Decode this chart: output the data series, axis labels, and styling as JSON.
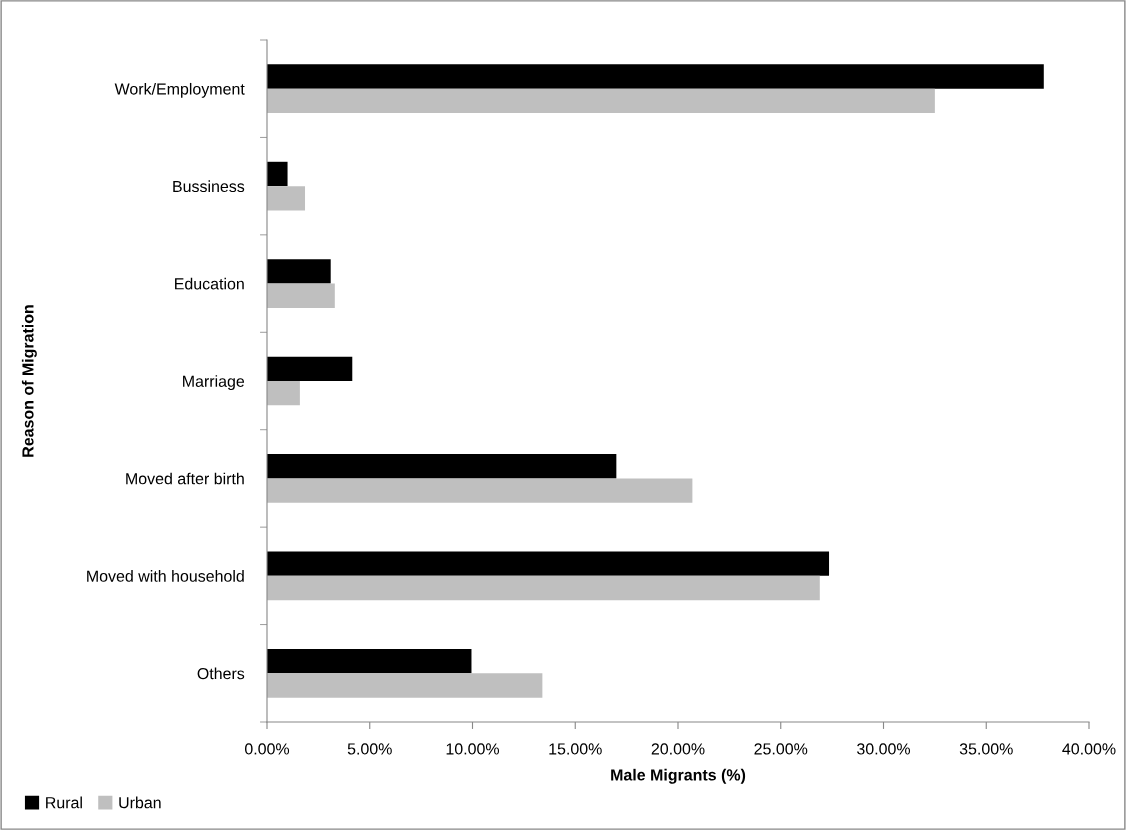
{
  "chart_data": {
    "type": "bar",
    "orientation": "horizontal",
    "xlabel": "Male Migrants (%)",
    "ylabel": "Reason of Migration",
    "categories": [
      "Work/Employment",
      "Bussiness",
      "Education",
      "Marriage",
      "Moved after birth",
      "Moved with household",
      "Others"
    ],
    "series": [
      {
        "name": "Rural",
        "color": "#000000",
        "values": [
          37.8,
          1.0,
          3.1,
          4.15,
          17.0,
          27.35,
          9.95
        ]
      },
      {
        "name": "Urban",
        "color": "#bfbfbf",
        "values": [
          32.5,
          1.85,
          3.3,
          1.6,
          20.7,
          26.9,
          13.4
        ]
      }
    ],
    "xlim": [
      0,
      40
    ],
    "xticks": [
      {
        "value": 0,
        "label": "0.00%"
      },
      {
        "value": 5,
        "label": "5.00%"
      },
      {
        "value": 10,
        "label": "10.00%"
      },
      {
        "value": 15,
        "label": "15.00%"
      },
      {
        "value": 20,
        "label": "20.00%"
      },
      {
        "value": 25,
        "label": "25.00%"
      },
      {
        "value": 30,
        "label": "30.00%"
      },
      {
        "value": 35,
        "label": "35.00%"
      },
      {
        "value": 40,
        "label": "40.00%"
      }
    ],
    "grid": false,
    "legend": "bottom left"
  }
}
